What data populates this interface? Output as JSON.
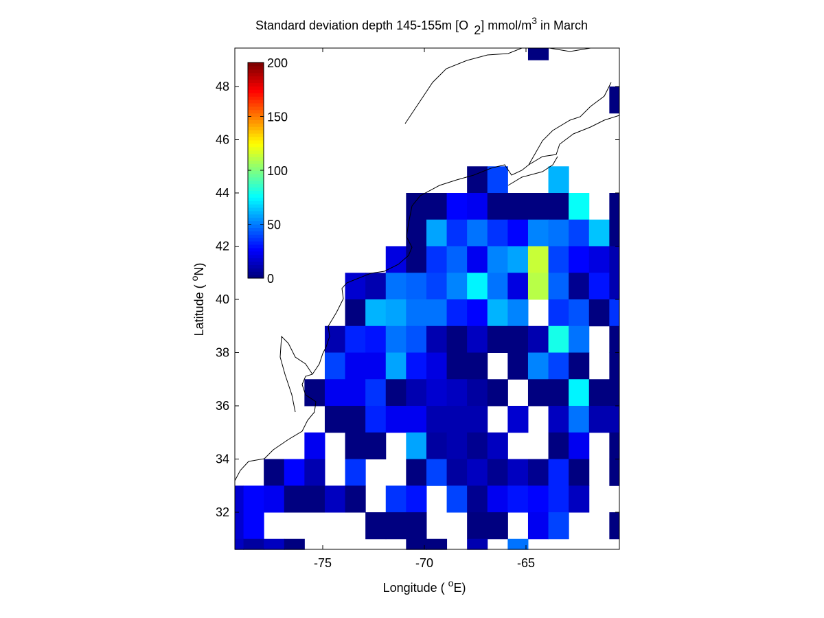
{
  "chart_data": {
    "type": "heatmap",
    "title": {
      "main": "Standard deviation depth 145-155m [O",
      "subscript": "2",
      "mid": "] mmol/m",
      "superscript": "3",
      "end": " in March"
    },
    "xlabel": {
      "prefix": "Longitude ( ",
      "sup": "o",
      "suffix": "E)"
    },
    "ylabel": {
      "prefix": "Latitude ( ",
      "sup": "o",
      "suffix": "N)"
    },
    "xlim": [
      -79.33,
      -60.42
    ],
    "ylim": [
      30.6,
      49.45
    ],
    "xticks": [
      -75,
      -70,
      -65
    ],
    "xtick_labels": [
      "-75",
      "-70",
      "-65"
    ],
    "yticks": [
      32,
      34,
      36,
      38,
      40,
      42,
      44,
      46,
      48
    ],
    "ytick_labels": [
      "32",
      "34",
      "36",
      "38",
      "40",
      "42",
      "44",
      "46",
      "48"
    ],
    "colorbar": {
      "range": [
        0,
        200
      ],
      "ticks": [
        0,
        50,
        100,
        150,
        200
      ],
      "tick_labels": [
        "0",
        "50",
        "100",
        "150",
        "200"
      ],
      "colormap": "jet",
      "placement": "top-left inside"
    },
    "lon_edges": [
      -79.33,
      -78.9,
      -77.9,
      -76.9,
      -75.9,
      -74.9,
      -73.9,
      -72.9,
      -71.9,
      -70.9,
      -69.9,
      -68.9,
      -67.9,
      -66.9,
      -65.9,
      -64.9,
      -63.9,
      -62.9,
      -61.9,
      -60.9,
      -60.42
    ],
    "lat_edges_top_to_bottom": [
      49.45,
      49,
      48,
      47,
      46,
      45,
      44,
      43,
      42,
      41,
      40,
      39,
      38,
      37,
      36,
      35,
      34,
      33,
      32,
      31,
      30.6
    ],
    "values_rows_north_to_south": [
      [
        null,
        null,
        null,
        null,
        null,
        null,
        null,
        null,
        null,
        null,
        null,
        null,
        null,
        null,
        null,
        3,
        null,
        null,
        null,
        null
      ],
      [
        null,
        null,
        null,
        null,
        null,
        null,
        null,
        null,
        null,
        null,
        null,
        null,
        null,
        null,
        null,
        null,
        null,
        null,
        null,
        null
      ],
      [
        null,
        null,
        null,
        null,
        null,
        null,
        null,
        null,
        null,
        null,
        null,
        null,
        null,
        null,
        null,
        null,
        null,
        null,
        null,
        3
      ],
      [
        null,
        null,
        null,
        null,
        null,
        null,
        null,
        null,
        null,
        null,
        null,
        null,
        null,
        null,
        null,
        null,
        null,
        null,
        null,
        null
      ],
      [
        null,
        null,
        null,
        null,
        null,
        null,
        null,
        null,
        null,
        null,
        null,
        null,
        null,
        null,
        null,
        null,
        null,
        null,
        null,
        null
      ],
      [
        null,
        null,
        null,
        null,
        null,
        null,
        null,
        null,
        null,
        null,
        null,
        null,
        3,
        40,
        null,
        null,
        62,
        null,
        null,
        null
      ],
      [
        null,
        null,
        null,
        null,
        null,
        null,
        null,
        null,
        null,
        2,
        2,
        28,
        25,
        3,
        3,
        3,
        3,
        78,
        null,
        3
      ],
      [
        null,
        null,
        null,
        null,
        null,
        null,
        null,
        null,
        null,
        2,
        58,
        35,
        47,
        35,
        28,
        52,
        47,
        40,
        65,
        3
      ],
      [
        null,
        null,
        null,
        null,
        null,
        null,
        null,
        null,
        20,
        3,
        35,
        44,
        25,
        52,
        58,
        115,
        40,
        28,
        20,
        10
      ],
      [
        null,
        null,
        null,
        null,
        null,
        null,
        18,
        10,
        47,
        44,
        40,
        52,
        72,
        47,
        20,
        112,
        44,
        5,
        30,
        10
      ],
      [
        null,
        null,
        null,
        null,
        null,
        null,
        3,
        62,
        57,
        49,
        47,
        32,
        28,
        60,
        52,
        null,
        35,
        42,
        3,
        35
      ],
      [
        null,
        null,
        null,
        null,
        null,
        10,
        32,
        30,
        47,
        42,
        12,
        3,
        15,
        3,
        3,
        10,
        80,
        49,
        null,
        3
      ],
      [
        null,
        null,
        null,
        null,
        null,
        38,
        25,
        25,
        58,
        30,
        20,
        3,
        3,
        null,
        3,
        52,
        38,
        3,
        null,
        3
      ],
      [
        null,
        null,
        null,
        null,
        3,
        22,
        23,
        35,
        3,
        12,
        18,
        15,
        8,
        3,
        null,
        3,
        3,
        74,
        3,
        3
      ],
      [
        null,
        null,
        null,
        null,
        null,
        3,
        3,
        32,
        22,
        23,
        10,
        10,
        10,
        null,
        18,
        null,
        13,
        47,
        12,
        12
      ],
      [
        null,
        null,
        null,
        null,
        23,
        null,
        3,
        3,
        null,
        58,
        8,
        12,
        6,
        13,
        null,
        null,
        3,
        23,
        null,
        3
      ],
      [
        null,
        null,
        3,
        28,
        10,
        null,
        35,
        null,
        null,
        3,
        40,
        8,
        13,
        4,
        15,
        4,
        32,
        3,
        null,
        3
      ],
      [
        16,
        28,
        23,
        3,
        3,
        13,
        3,
        null,
        35,
        30,
        null,
        38,
        4,
        23,
        30,
        28,
        32,
        15,
        null,
        null
      ],
      [
        18,
        28,
        null,
        null,
        null,
        null,
        null,
        3,
        3,
        3,
        null,
        null,
        3,
        3,
        null,
        23,
        38,
        null,
        null,
        3
      ],
      [
        15,
        8,
        14,
        3,
        null,
        null,
        null,
        null,
        null,
        3,
        3,
        null,
        10,
        null,
        47,
        null,
        null,
        null,
        null,
        null
      ]
    ]
  }
}
